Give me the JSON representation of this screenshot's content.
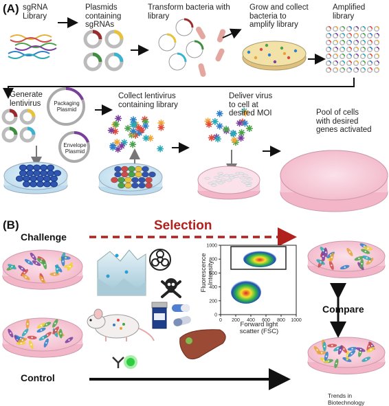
{
  "panel_a": {
    "label": "(A)",
    "steps": {
      "sgrna_library": [
        "sgRNA",
        "Library"
      ],
      "plasmids": [
        "Plasmids",
        "containing",
        "sgRNAs"
      ],
      "transform": [
        "Transform bacteria with",
        "library"
      ],
      "grow": [
        "Grow and collect",
        "bacteria to",
        "amplify library"
      ],
      "amplified": [
        "Amplified",
        "library"
      ],
      "generate": [
        "Generate",
        "lentivirus"
      ],
      "packaging": [
        "Packaging",
        "Plasmid"
      ],
      "envelope": [
        "Envelope",
        "Plasmid"
      ],
      "collect": [
        "Collect lentivirus",
        "containing library"
      ],
      "deliver": [
        "Deliver virus",
        "to cell at",
        "desired MOI"
      ],
      "pool": [
        "Pool of cells",
        "with desired",
        "genes activated"
      ]
    }
  },
  "panel_b": {
    "label": "(B)",
    "challenge": "Challenge",
    "control": "Control",
    "selection": "Selection",
    "compare": "Compare",
    "flow_plot": {
      "y_label": [
        "Fluorescence",
        "Intensity"
      ],
      "x_label": [
        "Forward light",
        "scatter (FSC)"
      ],
      "y_ticks": [
        "1000",
        "800",
        "600",
        "400",
        "200",
        "0"
      ],
      "x_ticks": [
        "0",
        "200",
        "400",
        "600",
        "800",
        "1000"
      ]
    }
  },
  "footer": "Trends in Biotechnology",
  "colors": {
    "selection_red": "#b0201c",
    "dish_pink": "#f6c7d6",
    "dish_blue": "#cfe6f2",
    "virus_colors": [
      "#e24b3b",
      "#f0a63a",
      "#4aa34a",
      "#2f7fc9",
      "#7a3e9d",
      "#2aa8b5"
    ]
  }
}
